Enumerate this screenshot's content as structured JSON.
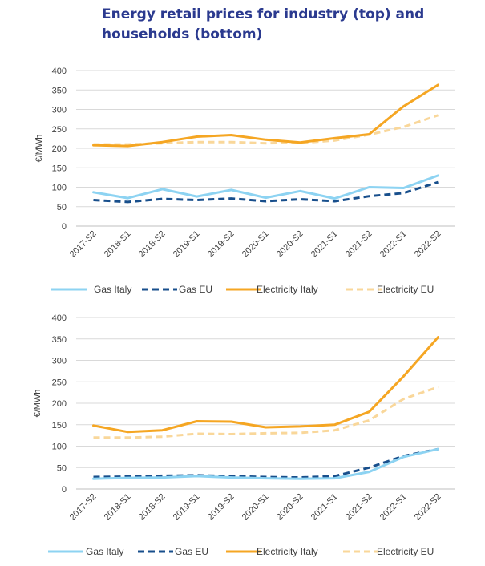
{
  "page": {
    "title": "Energy retail prices for industry (top) and households (bottom)"
  },
  "colors": {
    "gas_italy": "#8dd3f2",
    "gas_eu": "#184f8c",
    "electricity_italy": "#f5a623",
    "electricity_eu": "#f9d79a",
    "grid": "#d9d9d9",
    "axis": "#bfbfbf",
    "title": "#2b3a8f"
  },
  "chart_data": [
    {
      "type": "line",
      "title": "",
      "xlabel": "",
      "ylabel": "€/MWh",
      "ylim": [
        0,
        400
      ],
      "yticks": [
        0,
        50,
        100,
        150,
        200,
        250,
        300,
        350,
        400
      ],
      "grid": true,
      "legend": "bottom",
      "categories": [
        "2017-S2",
        "2018-S1",
        "2018-S2",
        "2019-S1",
        "2019-S2",
        "2020-S1",
        "2020-S2",
        "2021-S1",
        "2021-S2",
        "2022-S1",
        "2022-S2"
      ],
      "series": [
        {
          "name": "Gas Italy",
          "style": "solid",
          "color": "#8dd3f2",
          "values": [
            87,
            72,
            95,
            76,
            93,
            73,
            90,
            71,
            100,
            98,
            130
          ]
        },
        {
          "name": "Gas EU",
          "style": "dashed",
          "color": "#184f8c",
          "values": [
            67,
            62,
            70,
            67,
            71,
            64,
            69,
            64,
            77,
            85,
            113
          ]
        },
        {
          "name": "Electricity Italy",
          "style": "solid",
          "color": "#f5a623",
          "values": [
            208,
            206,
            216,
            230,
            234,
            222,
            215,
            226,
            236,
            308,
            363
          ]
        },
        {
          "name": "Electricity EU",
          "style": "dashed",
          "color": "#f9d79a",
          "values": [
            210,
            210,
            213,
            216,
            216,
            213,
            214,
            220,
            235,
            255,
            285
          ]
        }
      ]
    },
    {
      "type": "line",
      "title": "",
      "xlabel": "",
      "ylabel": "€/MWh",
      "ylim": [
        0,
        400
      ],
      "yticks": [
        0,
        50,
        100,
        150,
        200,
        250,
        300,
        350,
        400
      ],
      "grid": true,
      "legend": "bottom",
      "categories": [
        "2017-S2",
        "2018-S1",
        "2018-S2",
        "2019-S1",
        "2019-S2",
        "2020-S1",
        "2020-S2",
        "2021-S1",
        "2021-S2",
        "2022-S1",
        "2022-S2"
      ],
      "series": [
        {
          "name": "Gas Italy",
          "style": "solid",
          "color": "#8dd3f2",
          "values": [
            24,
            26,
            27,
            30,
            27,
            25,
            24,
            25,
            40,
            75,
            93
          ]
        },
        {
          "name": "Gas EU",
          "style": "dashed",
          "color": "#184f8c",
          "values": [
            28,
            29,
            31,
            32,
            30,
            28,
            27,
            30,
            50,
            77,
            93
          ]
        },
        {
          "name": "Electricity Italy",
          "style": "solid",
          "color": "#f5a623",
          "values": [
            148,
            133,
            137,
            158,
            157,
            144,
            146,
            150,
            180,
            263,
            354
          ]
        },
        {
          "name": "Electricity EU",
          "style": "dashed",
          "color": "#f9d79a",
          "values": [
            120,
            120,
            122,
            129,
            128,
            130,
            131,
            137,
            160,
            210,
            238
          ]
        }
      ]
    }
  ]
}
